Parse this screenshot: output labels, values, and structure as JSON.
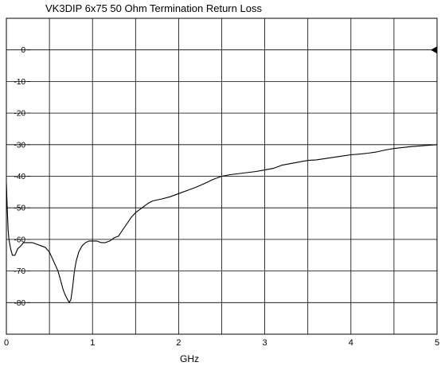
{
  "chart_data": {
    "type": "line",
    "title": "VK3DIP 6x75  50 Ohm Termination Return Loss",
    "xlabel": "GHz",
    "ylabel": "",
    "xlim": [
      0,
      5
    ],
    "ylim": [
      -90,
      10
    ],
    "x_ticks": [
      0,
      1,
      2,
      3,
      4,
      5
    ],
    "x_tick_labels": [
      "0",
      "1",
      "2",
      "3",
      "4",
      "5"
    ],
    "y_ticks": [
      0,
      -10,
      -20,
      -30,
      -40,
      -50,
      -60,
      -70,
      -80
    ],
    "y_tick_labels": [
      "0",
      "-10",
      "-20",
      "-30",
      "-40",
      "-50",
      "-60",
      "-70",
      "-80"
    ],
    "x_minor_step": 0.5,
    "y_minor_step": 10,
    "grid": true,
    "legend": "none",
    "reference_marker": {
      "x": 5,
      "y": 0,
      "shape": "left-pointing triangle"
    },
    "series": [
      {
        "color": "#000000",
        "x": [
          0.0,
          0.01,
          0.02,
          0.03,
          0.05,
          0.07,
          0.1,
          0.13,
          0.17,
          0.2,
          0.25,
          0.3,
          0.35,
          0.4,
          0.45,
          0.5,
          0.55,
          0.6,
          0.63,
          0.66,
          0.69,
          0.71,
          0.73,
          0.75,
          0.77,
          0.79,
          0.81,
          0.84,
          0.88,
          0.92,
          0.96,
          1.0,
          1.05,
          1.1,
          1.15,
          1.2,
          1.25,
          1.3,
          1.35,
          1.4,
          1.45,
          1.5,
          1.55,
          1.6,
          1.65,
          1.7,
          1.8,
          1.9,
          2.0,
          2.1,
          2.2,
          2.3,
          2.4,
          2.5,
          2.6,
          2.75,
          2.9,
          3.0,
          3.1,
          3.2,
          3.3,
          3.4,
          3.5,
          3.6,
          3.7,
          3.8,
          3.9,
          4.0,
          4.1,
          4.2,
          4.3,
          4.4,
          4.5,
          4.6,
          4.7,
          4.8,
          4.9,
          5.0
        ],
        "y": [
          -42,
          -50,
          -57,
          -60,
          -63,
          -65,
          -65,
          -63,
          -62,
          -61,
          -61,
          -61,
          -61.5,
          -62,
          -62.5,
          -64,
          -67,
          -70,
          -73,
          -76,
          -78,
          -79,
          -80,
          -79,
          -75,
          -70,
          -67,
          -64,
          -62,
          -61,
          -60.5,
          -60.5,
          -60.5,
          -61,
          -61,
          -60.5,
          -59.5,
          -59,
          -57,
          -55,
          -53,
          -51.5,
          -50.5,
          -49.5,
          -48.5,
          -47.8,
          -47.2,
          -46.5,
          -45.5,
          -44.5,
          -43.5,
          -42.3,
          -41,
          -40,
          -39.5,
          -39,
          -38.5,
          -38,
          -37.5,
          -36.5,
          -36,
          -35.5,
          -35,
          -34.8,
          -34.4,
          -34,
          -33.6,
          -33.2,
          -33,
          -32.7,
          -32.3,
          -31.7,
          -31.2,
          -30.9,
          -30.6,
          -30.4,
          -30.2,
          -30
        ]
      }
    ]
  }
}
